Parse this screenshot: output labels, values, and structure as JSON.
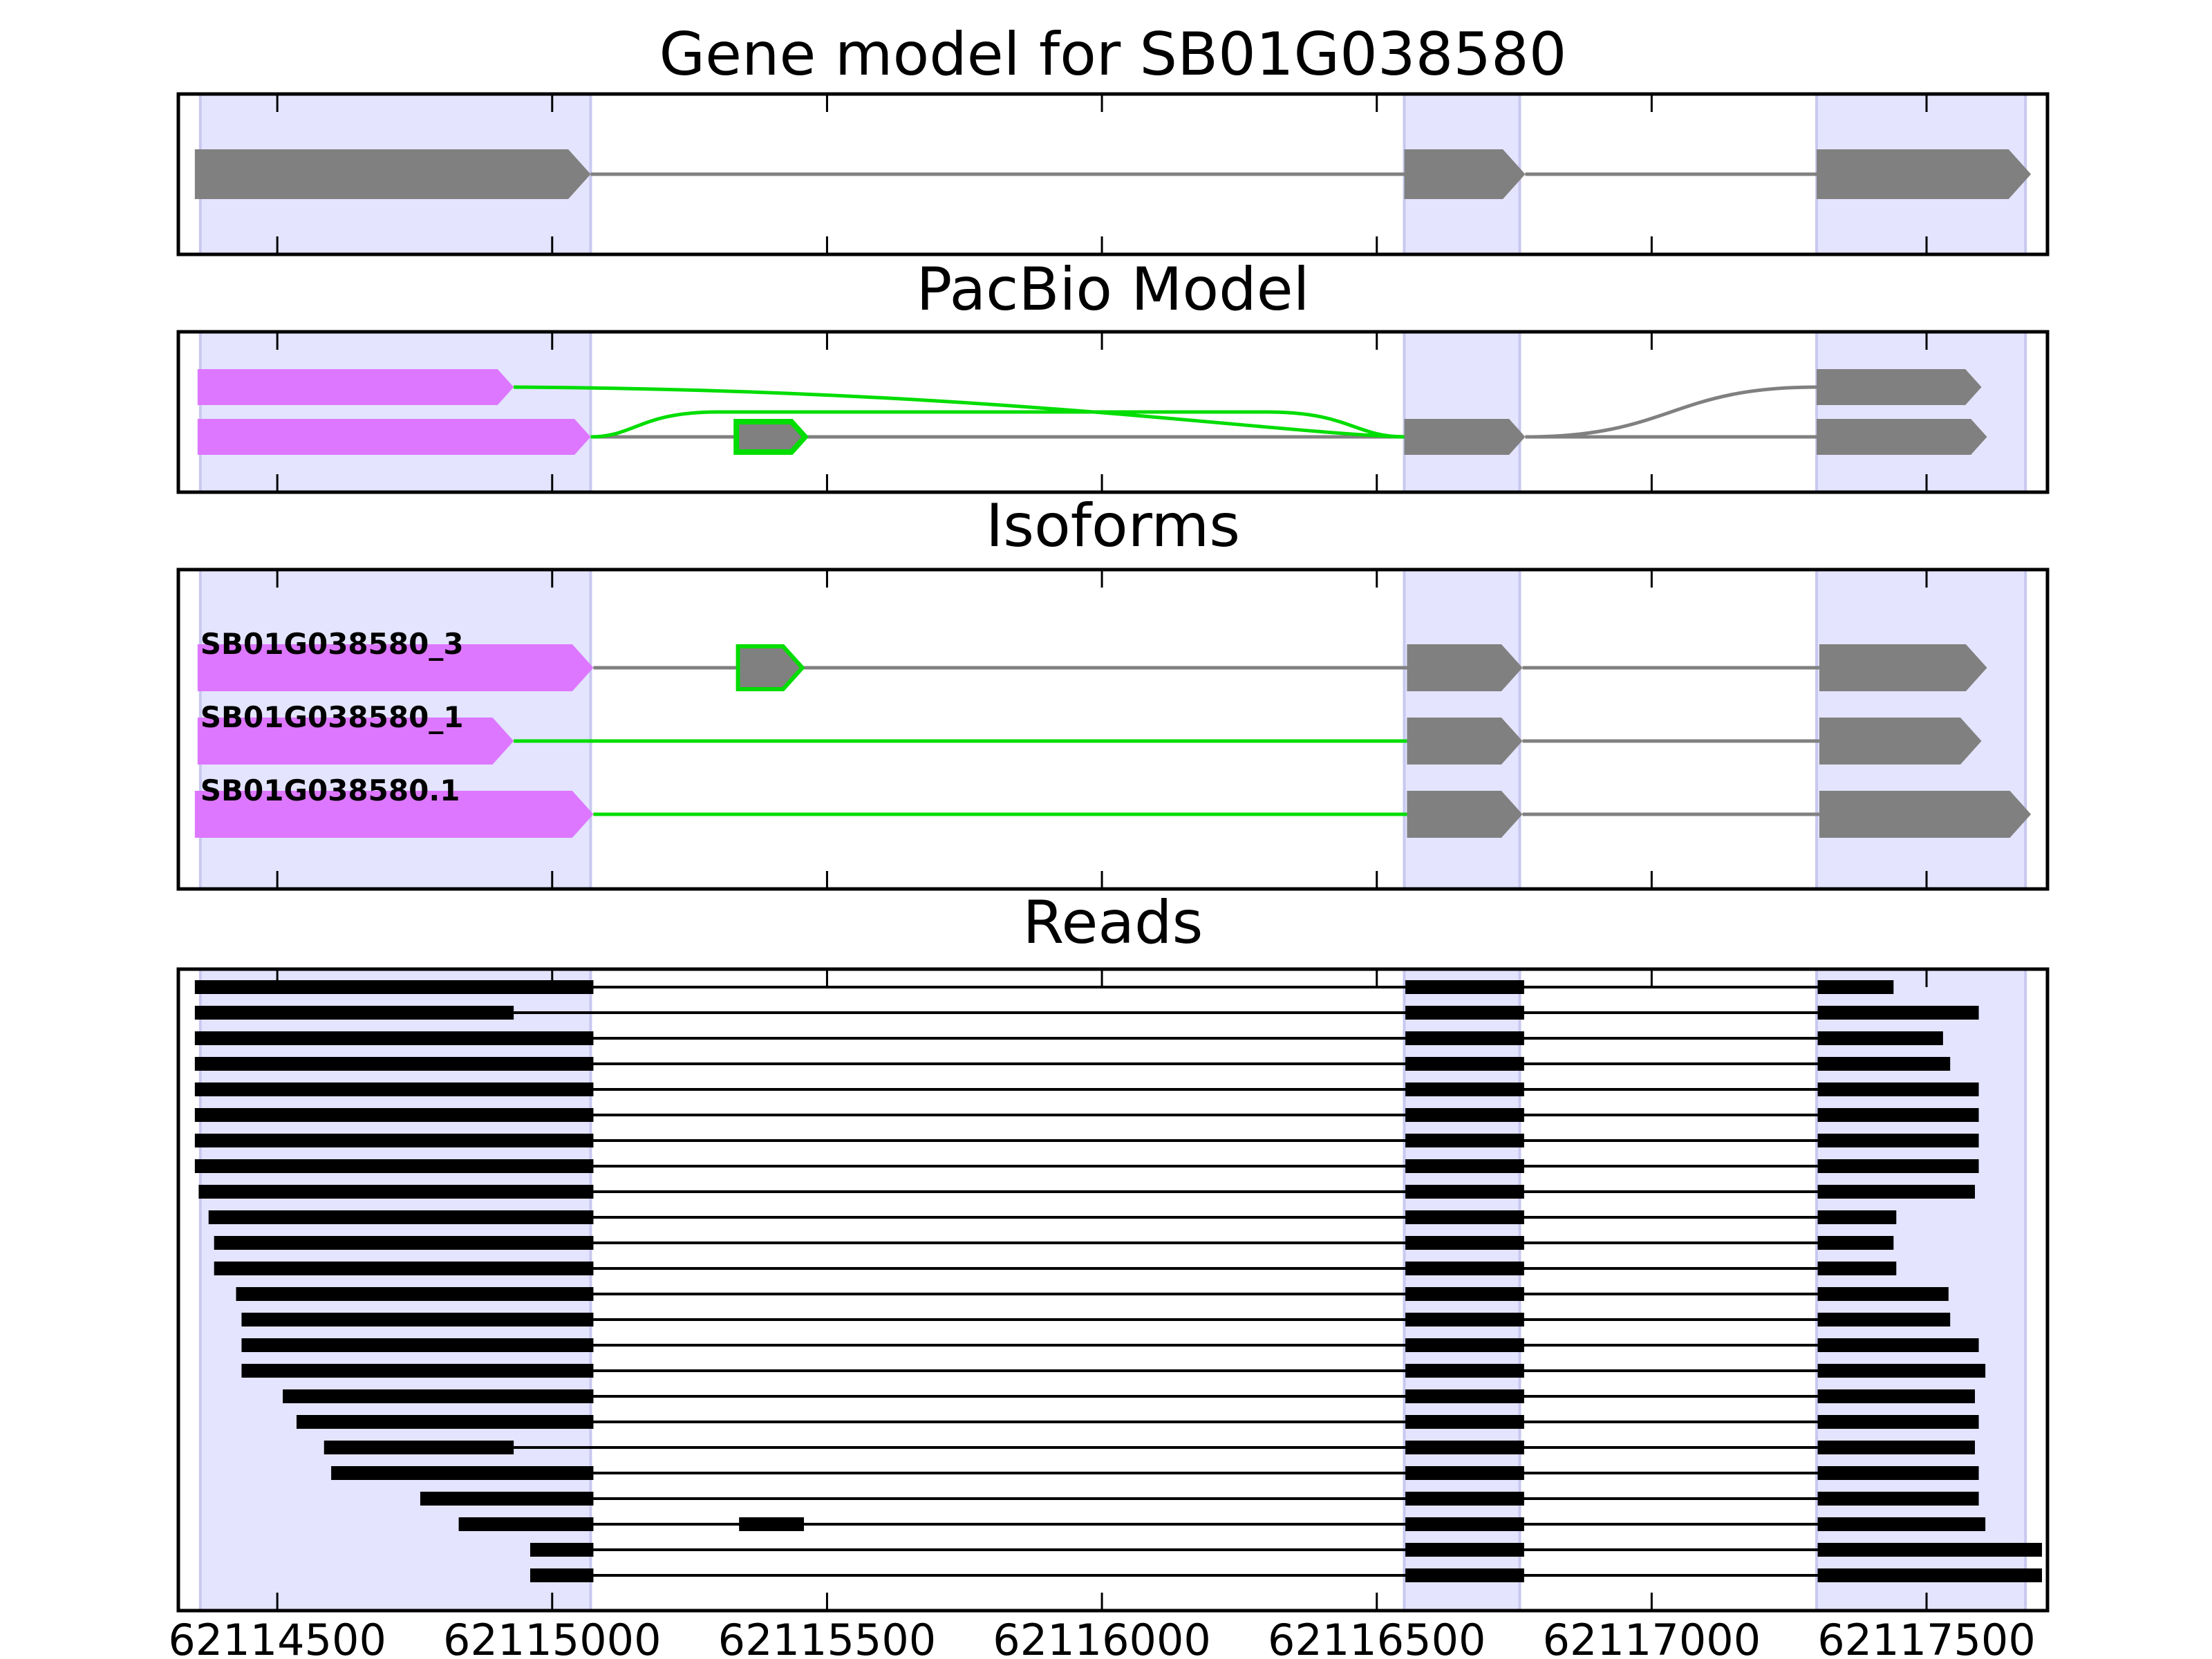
{
  "figure": {
    "panels": [
      {
        "key": "gene_model",
        "title": "Gene model for SB01G038580"
      },
      {
        "key": "pacbio",
        "title": "PacBio Model"
      },
      {
        "key": "isoforms",
        "title": "Isoforms"
      },
      {
        "key": "reads",
        "title": "Reads"
      }
    ],
    "x_ticks": [
      "62114500",
      "62115000",
      "62115500",
      "62116000",
      "62116500",
      "62117000",
      "62117500"
    ]
  },
  "chart_data": {
    "type": "gene_structure",
    "x_range": [
      62114320,
      62117720
    ],
    "x_ticks": [
      62114500,
      62115000,
      62115500,
      62116000,
      62116500,
      62117000,
      62117500
    ],
    "exon_regions": [
      [
        62114360,
        62115070
      ],
      [
        62116550,
        62116760
      ],
      [
        62117300,
        62117680
      ]
    ],
    "colors": {
      "exon": "#808080",
      "intron": "#808080",
      "alt_exon": "#dd77ff",
      "alt_edge": "#00dd00",
      "region": "#e4e4ff",
      "read": "#000000"
    },
    "gene_model": {
      "exons": [
        [
          62114350,
          62115070
        ],
        [
          62116550,
          62116770
        ],
        [
          62117300,
          62117690
        ]
      ]
    },
    "pacbio": {
      "rows": [
        {
          "exons": [
            [
              62114355,
              62114930
            ],
            [
              62117300,
              62117600
            ]
          ]
        },
        {
          "exons": [
            [
              62114355,
              62115070
            ],
            [
              62115335,
              62115460
            ],
            [
              62116550,
              62116770
            ],
            [
              62117300,
              62117610
            ]
          ]
        }
      ],
      "green_exons": [
        [
          62114355,
          62114930
        ],
        [
          62114355,
          62115070
        ]
      ],
      "green_outline_exons": [
        [
          62115335,
          62115460
        ]
      ]
    },
    "isoforms": [
      {
        "name": "SB01G038580_3",
        "exons": [
          [
            62114355,
            62115075
          ],
          [
            62115338,
            62115455
          ],
          [
            62116555,
            62116765
          ],
          [
            62117305,
            62117610
          ]
        ],
        "purple": [
          0
        ],
        "outlined": [
          1
        ],
        "green_introns": []
      },
      {
        "name": "SB01G038580_1",
        "exons": [
          [
            62114355,
            62114930
          ],
          [
            62116555,
            62116765
          ],
          [
            62117305,
            62117600
          ]
        ],
        "purple": [
          0
        ],
        "outlined": [],
        "green_introns": [
          0
        ]
      },
      {
        "name": "SB01G038580.1",
        "exons": [
          [
            62114350,
            62115075
          ],
          [
            62116555,
            62116765
          ],
          [
            62117305,
            62117690
          ]
        ],
        "purple": [
          0
        ],
        "outlined": [],
        "green_introns": [
          0
        ]
      }
    ],
    "reads": [
      {
        "exons": [
          [
            62114350,
            62115075
          ],
          [
            62116552,
            62116768
          ],
          [
            62117302,
            62117440
          ]
        ]
      },
      {
        "exons": [
          [
            62114350,
            62114930
          ],
          [
            62116552,
            62116768
          ],
          [
            62117302,
            62117595
          ]
        ]
      },
      {
        "exons": [
          [
            62114350,
            62115075
          ],
          [
            62116552,
            62116768
          ],
          [
            62117302,
            62117530
          ]
        ]
      },
      {
        "exons": [
          [
            62114350,
            62115075
          ],
          [
            62116552,
            62116768
          ],
          [
            62117302,
            62117543
          ]
        ]
      },
      {
        "exons": [
          [
            62114350,
            62115075
          ],
          [
            62116552,
            62116768
          ],
          [
            62117302,
            62117595
          ]
        ]
      },
      {
        "exons": [
          [
            62114350,
            62115075
          ],
          [
            62116552,
            62116768
          ],
          [
            62117302,
            62117595
          ]
        ]
      },
      {
        "exons": [
          [
            62114350,
            62115075
          ],
          [
            62116552,
            62116768
          ],
          [
            62117302,
            62117595
          ]
        ]
      },
      {
        "exons": [
          [
            62114350,
            62115075
          ],
          [
            62116552,
            62116768
          ],
          [
            62117302,
            62117595
          ]
        ]
      },
      {
        "exons": [
          [
            62114357,
            62115075
          ],
          [
            62116552,
            62116768
          ],
          [
            62117302,
            62117588
          ]
        ]
      },
      {
        "exons": [
          [
            62114375,
            62115075
          ],
          [
            62116552,
            62116768
          ],
          [
            62117302,
            62117445
          ]
        ]
      },
      {
        "exons": [
          [
            62114385,
            62115075
          ],
          [
            62116552,
            62116768
          ],
          [
            62117302,
            62117440
          ]
        ]
      },
      {
        "exons": [
          [
            62114385,
            62115075
          ],
          [
            62116552,
            62116768
          ],
          [
            62117302,
            62117445
          ]
        ]
      },
      {
        "exons": [
          [
            62114425,
            62115075
          ],
          [
            62116552,
            62116768
          ],
          [
            62117302,
            62117540
          ]
        ]
      },
      {
        "exons": [
          [
            62114435,
            62115075
          ],
          [
            62116552,
            62116768
          ],
          [
            62117302,
            62117543
          ]
        ]
      },
      {
        "exons": [
          [
            62114435,
            62115075
          ],
          [
            62116552,
            62116768
          ],
          [
            62117302,
            62117595
          ]
        ]
      },
      {
        "exons": [
          [
            62114435,
            62115075
          ],
          [
            62116552,
            62116768
          ],
          [
            62117302,
            62117607
          ]
        ]
      },
      {
        "exons": [
          [
            62114510,
            62115075
          ],
          [
            62116552,
            62116768
          ],
          [
            62117302,
            62117588
          ]
        ]
      },
      {
        "exons": [
          [
            62114535,
            62115075
          ],
          [
            62116552,
            62116768
          ],
          [
            62117302,
            62117595
          ]
        ]
      },
      {
        "exons": [
          [
            62114585,
            62114930
          ],
          [
            62116552,
            62116768
          ],
          [
            62117302,
            62117588
          ]
        ]
      },
      {
        "exons": [
          [
            62114598,
            62115075
          ],
          [
            62116552,
            62116768
          ],
          [
            62117302,
            62117595
          ]
        ]
      },
      {
        "exons": [
          [
            62114760,
            62115075
          ],
          [
            62116552,
            62116768
          ],
          [
            62117302,
            62117595
          ]
        ]
      },
      {
        "exons": [
          [
            62114830,
            62115075
          ],
          [
            62115340,
            62115458
          ],
          [
            62116552,
            62116768
          ],
          [
            62117302,
            62117607
          ]
        ]
      },
      {
        "exons": [
          [
            62114960,
            62115075
          ],
          [
            62116552,
            62116768
          ],
          [
            62117302,
            62117710
          ]
        ]
      },
      {
        "exons": [
          [
            62114960,
            62115075
          ],
          [
            62116552,
            62116768
          ],
          [
            62117302,
            62117710
          ]
        ]
      }
    ]
  }
}
